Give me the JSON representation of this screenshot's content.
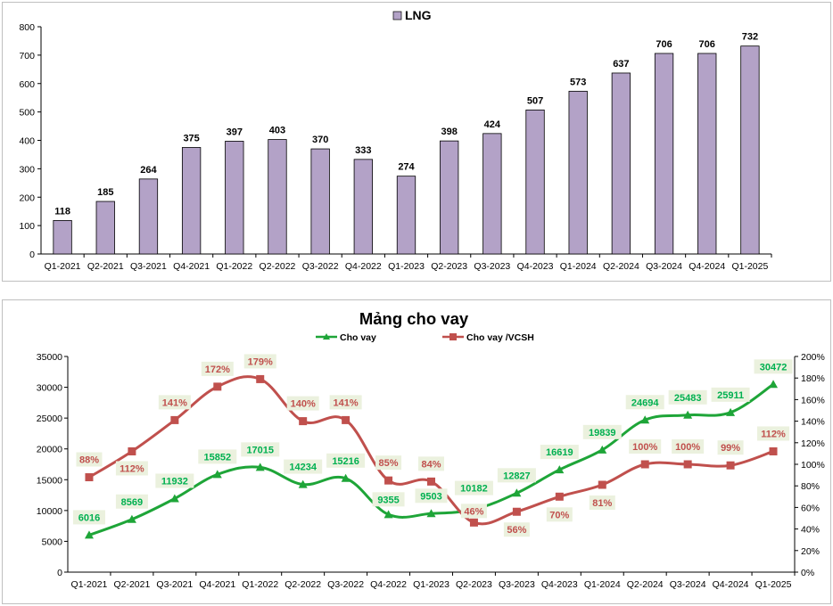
{
  "chart_data": [
    {
      "type": "bar",
      "categories": [
        "Q1-2021",
        "Q2-2021",
        "Q3-2021",
        "Q4-2021",
        "Q1-2022",
        "Q2-2022",
        "Q3-2022",
        "Q4-2022",
        "Q1-2023",
        "Q2-2023",
        "Q3-2023",
        "Q4-2023",
        "Q1-2024",
        "Q2-2024",
        "Q3-2024",
        "Q4-2024",
        "Q1-2025"
      ],
      "series": [
        {
          "name": "LNG",
          "values": [
            118,
            185,
            264,
            375,
            397,
            403,
            370,
            333,
            274,
            398,
            424,
            507,
            573,
            637,
            706,
            706,
            732
          ],
          "color": "#b3a2c7"
        }
      ],
      "legend_position": "top-center",
      "yticks": [
        0,
        100,
        200,
        300,
        400,
        500,
        600,
        700,
        800
      ],
      "ylim": [
        0,
        800
      ],
      "grid": false
    },
    {
      "type": "line",
      "title": "Mảng cho vay",
      "categories": [
        "Q1-2021",
        "Q2-2021",
        "Q3-2021",
        "Q4-2021",
        "Q1-2022",
        "Q2-2022",
        "Q3-2022",
        "Q4-2022",
        "Q1-2023",
        "Q2-2023",
        "Q3-2023",
        "Q4-2023",
        "Q1-2024",
        "Q2-2024",
        "Q3-2024",
        "Q4-2024",
        "Q1-2025"
      ],
      "series": [
        {
          "name": "Cho vay",
          "axis": "left",
          "marker": "triangle",
          "color": "#1ea538",
          "values": [
            6016,
            8569,
            11932,
            15852,
            17015,
            14234,
            15216,
            9355,
            9503,
            10182,
            12827,
            16619,
            19839,
            24694,
            25483,
            25911,
            30472
          ],
          "labels": [
            "6016",
            "8569",
            "11932",
            "15852",
            "17015",
            "14234",
            "15216",
            "9355",
            "9503",
            "10182",
            "12827",
            "16619",
            "19839",
            "24694",
            "25483",
            "25911",
            "30472"
          ]
        },
        {
          "name": "Cho vay /VCSH",
          "axis": "right",
          "marker": "square",
          "color": "#c0504d",
          "values": [
            88,
            112,
            141,
            172,
            179,
            140,
            141,
            85,
            84,
            46,
            56,
            70,
            81,
            100,
            100,
            99,
            112
          ],
          "labels": [
            "88%",
            "112%",
            "141%",
            "172%",
            "179%",
            "140%",
            "141%",
            "85%",
            "84%",
            "46%",
            "56%",
            "70%",
            "81%",
            "100%",
            "100%",
            "99%",
            "112%"
          ]
        }
      ],
      "legend_position": "top-center",
      "y_left_ticks": [
        "0",
        "5000",
        "10000",
        "15000",
        "20000",
        "25000",
        "30000",
        "35000"
      ],
      "y_left_range": [
        0,
        35000
      ],
      "y_right_ticks": [
        "0%",
        "20%",
        "40%",
        "60%",
        "80%",
        "100%",
        "120%",
        "140%",
        "160%",
        "180%",
        "200%"
      ],
      "y_right_range": [
        0,
        200
      ],
      "grid": false
    }
  ]
}
